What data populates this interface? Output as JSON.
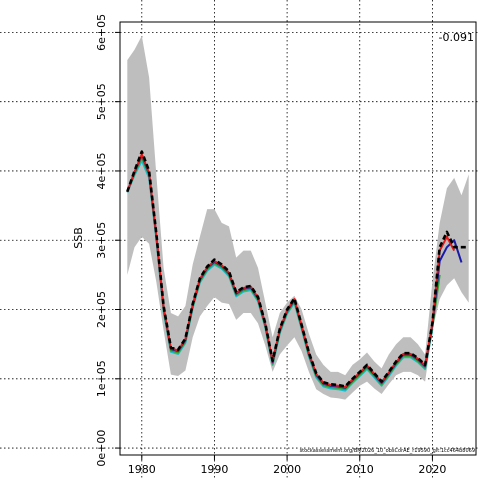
{
  "chart_data": {
    "type": "line",
    "title": "",
    "xlabel": "",
    "ylabel": "SSB",
    "xlim": [
      1977,
      2026
    ],
    "ylim": [
      -10000,
      615000
    ],
    "grid": true,
    "x_ticks": [
      1980,
      1990,
      2000,
      2010,
      2020
    ],
    "x_tick_labels": [
      "1980",
      "1990",
      "2000",
      "2010",
      "2020"
    ],
    "y_ticks": [
      0,
      100000,
      200000,
      300000,
      400000,
      500000,
      600000
    ],
    "y_tick_labels": [
      "0e+00",
      "1e+05",
      "2e+05",
      "3e+05",
      "4e+05",
      "5e+05",
      "6e+05"
    ],
    "annotation": "-0.091",
    "credit": "stockassessment.org/BM2026_10_obsCorAE_r19590_git:1cc464b8069",
    "years": [
      1978,
      1979,
      1980,
      1981,
      1982,
      1983,
      1984,
      1985,
      1986,
      1987,
      1988,
      1989,
      1990,
      1991,
      1992,
      1993,
      1994,
      1995,
      1996,
      1997,
      1998,
      1999,
      2000,
      2001,
      2002,
      2003,
      2004,
      2005,
      2006,
      2007,
      2008,
      2009,
      2010,
      2011,
      2012,
      2013,
      2014,
      2015,
      2016,
      2017,
      2018,
      2019,
      2020,
      2021,
      2022,
      2023,
      2024,
      2025
    ],
    "ci_upper": [
      560000,
      575000,
      595000,
      535000,
      395000,
      260000,
      195000,
      190000,
      205000,
      265000,
      305000,
      345000,
      345000,
      325000,
      320000,
      275000,
      285000,
      285000,
      260000,
      210000,
      160000,
      195000,
      210000,
      220000,
      200000,
      165000,
      135000,
      120000,
      110000,
      110000,
      105000,
      120000,
      128000,
      138000,
      125000,
      115000,
      135000,
      150000,
      160000,
      160000,
      150000,
      135000,
      240000,
      325000,
      375000,
      390000,
      365000,
      395000
    ],
    "ci_lower": [
      250000,
      290000,
      305000,
      295000,
      240000,
      170000,
      106000,
      104000,
      112000,
      160000,
      190000,
      205000,
      218000,
      210000,
      208000,
      185000,
      195000,
      195000,
      180000,
      148000,
      110000,
      135000,
      148000,
      160000,
      140000,
      110000,
      85000,
      78000,
      73000,
      72000,
      70000,
      80000,
      90000,
      96000,
      86000,
      78000,
      92000,
      105000,
      110000,
      110000,
      105000,
      96000,
      170000,
      215000,
      235000,
      245000,
      225000,
      210000
    ],
    "series": [
      {
        "color": "#000000",
        "dashed": true,
        "values": [
          370000,
          400000,
          428000,
          400000,
          310000,
          205000,
          145000,
          142000,
          158000,
          208000,
          245000,
          262000,
          272000,
          265000,
          255000,
          225000,
          232000,
          234000,
          218000,
          180000,
          126000,
          172000,
          200000,
          216000,
          178000,
          138000,
          108000,
          95000,
          92000,
          91000,
          89000,
          100000,
          110000,
          120000,
          108000,
          96000,
          110000,
          125000,
          137000,
          137000,
          130000,
          120000,
          180000,
          290000,
          312000,
          290000,
          290000,
          290000
        ]
      },
      {
        "color": "#e31a1c",
        "dashed": false,
        "values": [
          370000,
          398000,
          424000,
          397000,
          308000,
          203000,
          144000,
          141000,
          157000,
          207000,
          244000,
          261000,
          270000,
          264000,
          253000,
          224000,
          231000,
          233000,
          217000,
          179000,
          125000,
          171000,
          199000,
          215000,
          177000,
          137000,
          107000,
          94000,
          91000,
          90000,
          88000,
          99000,
          109000,
          119000,
          107000,
          95000,
          109000,
          124000,
          136000,
          136000,
          129000,
          119000,
          180000,
          285000,
          305000,
          285000,
          null,
          null
        ]
      },
      {
        "color": "#1a1aa8",
        "dashed": false,
        "values": [
          370000,
          398000,
          423000,
          396000,
          307000,
          202000,
          143000,
          140000,
          156000,
          206000,
          243000,
          260000,
          269000,
          263000,
          252000,
          223000,
          230000,
          232000,
          216000,
          178000,
          124000,
          170000,
          198000,
          214000,
          176000,
          136000,
          106000,
          93000,
          90000,
          89000,
          87000,
          98000,
          108000,
          118000,
          106000,
          94000,
          108000,
          123000,
          135000,
          135000,
          128000,
          118000,
          178000,
          270000,
          290000,
          300000,
          268000,
          null
        ]
      },
      {
        "color": "#33a02c",
        "dashed": false,
        "values": [
          370000,
          396000,
          420000,
          394000,
          305000,
          200000,
          141000,
          138000,
          154000,
          204000,
          241000,
          258000,
          267000,
          261000,
          250000,
          221000,
          228000,
          230000,
          214000,
          176000,
          122000,
          168000,
          196000,
          212000,
          174000,
          134000,
          104000,
          91000,
          88000,
          87000,
          85000,
          96000,
          106000,
          116000,
          104000,
          92000,
          106000,
          121000,
          133000,
          133000,
          126000,
          116000,
          175000,
          250000,
          null,
          null,
          null,
          null
        ]
      },
      {
        "color": "#17becf",
        "dashed": false,
        "values": [
          369000,
          394000,
          415000,
          390000,
          302000,
          197000,
          139000,
          136000,
          152000,
          202000,
          239000,
          256000,
          265000,
          259000,
          248000,
          219000,
          226000,
          228000,
          212000,
          174000,
          120000,
          166000,
          194000,
          210000,
          172000,
          132000,
          102000,
          89000,
          86000,
          85000,
          83000,
          94000,
          104000,
          114000,
          102000,
          90000,
          104000,
          119000,
          131000,
          131000,
          124000,
          114000,
          172000,
          null,
          null,
          null,
          null,
          null
        ]
      }
    ]
  }
}
